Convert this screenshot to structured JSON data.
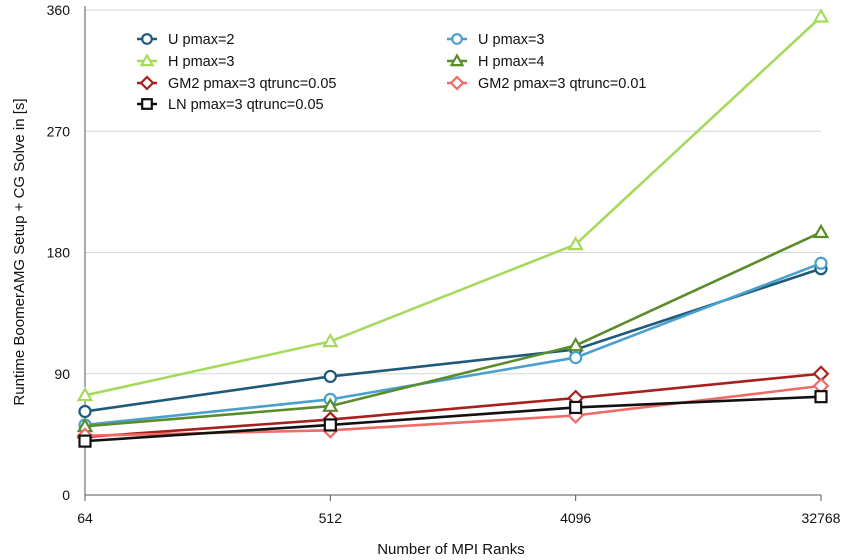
{
  "chart_data": {
    "type": "line",
    "title": "",
    "xlabel": "Number of MPI Ranks",
    "ylabel": "Runtime BoomerAMG Setup + CG Solve in [s]",
    "categories": [
      "64",
      "512",
      "4096",
      "32768"
    ],
    "ylim": [
      0,
      360
    ],
    "yticks": [
      "0",
      "90",
      "180",
      "270",
      "360"
    ],
    "grid": "horizontal",
    "legend_position": "top-left",
    "series": [
      {
        "name": "U pmax=2",
        "values": [
          62,
          88,
          108,
          168
        ],
        "color": "#1e5a7a",
        "marker": "circle"
      },
      {
        "name": "U pmax=3",
        "values": [
          52,
          71,
          102,
          172
        ],
        "color": "#4aa0cc",
        "marker": "circle"
      },
      {
        "name": "H pmax=3",
        "values": [
          74,
          114,
          186,
          355
        ],
        "color": "#a6da5c",
        "marker": "triangle"
      },
      {
        "name": "H pmax=4",
        "values": [
          51,
          66,
          111,
          195
        ],
        "color": "#5a8c2a",
        "marker": "triangle"
      },
      {
        "name": "GM2 pmax=3 qtrunc=0.05",
        "values": [
          43,
          56,
          72,
          90
        ],
        "color": "#a8201e",
        "marker": "diamond"
      },
      {
        "name": "GM2 pmax=3 qtrunc=0.01",
        "values": [
          44,
          48,
          59,
          81
        ],
        "color": "#f06a66",
        "marker": "diamond"
      },
      {
        "name": "LN pmax=3 qtrunc=0.05",
        "values": [
          40,
          52,
          65,
          73
        ],
        "color": "#111111",
        "marker": "square"
      }
    ]
  }
}
